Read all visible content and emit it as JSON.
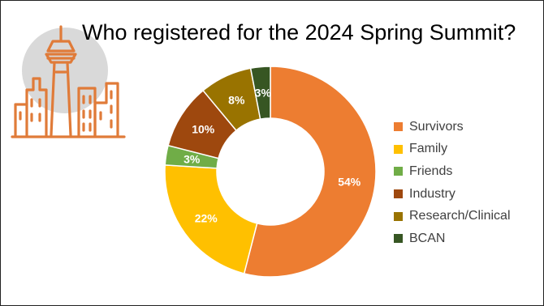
{
  "slide": {
    "title": "Who registered for the 2024 Spring Summit?"
  },
  "logo": {
    "icon": "city-skyline-icon",
    "circle_color": "#d9d9d9",
    "line_color": "#e07b39"
  },
  "chart_data": {
    "type": "pie",
    "title": "Who registered for the 2024 Spring Summit?",
    "donut": true,
    "legend_position": "right",
    "slices": [
      {
        "label": "Survivors",
        "value": 54,
        "display": "54%",
        "color": "#ED7D31"
      },
      {
        "label": "Family",
        "value": 22,
        "display": "22%",
        "color": "#FFC000"
      },
      {
        "label": "Friends",
        "value": 3,
        "display": "3%",
        "color": "#70AD47"
      },
      {
        "label": "Industry",
        "value": 10,
        "display": "10%",
        "color": "#9E480E"
      },
      {
        "label": "Research/Clinical",
        "value": 8,
        "display": "8%",
        "color": "#997300"
      },
      {
        "label": "BCAN",
        "value": 3,
        "display": "3%",
        "color": "#375623"
      }
    ]
  }
}
